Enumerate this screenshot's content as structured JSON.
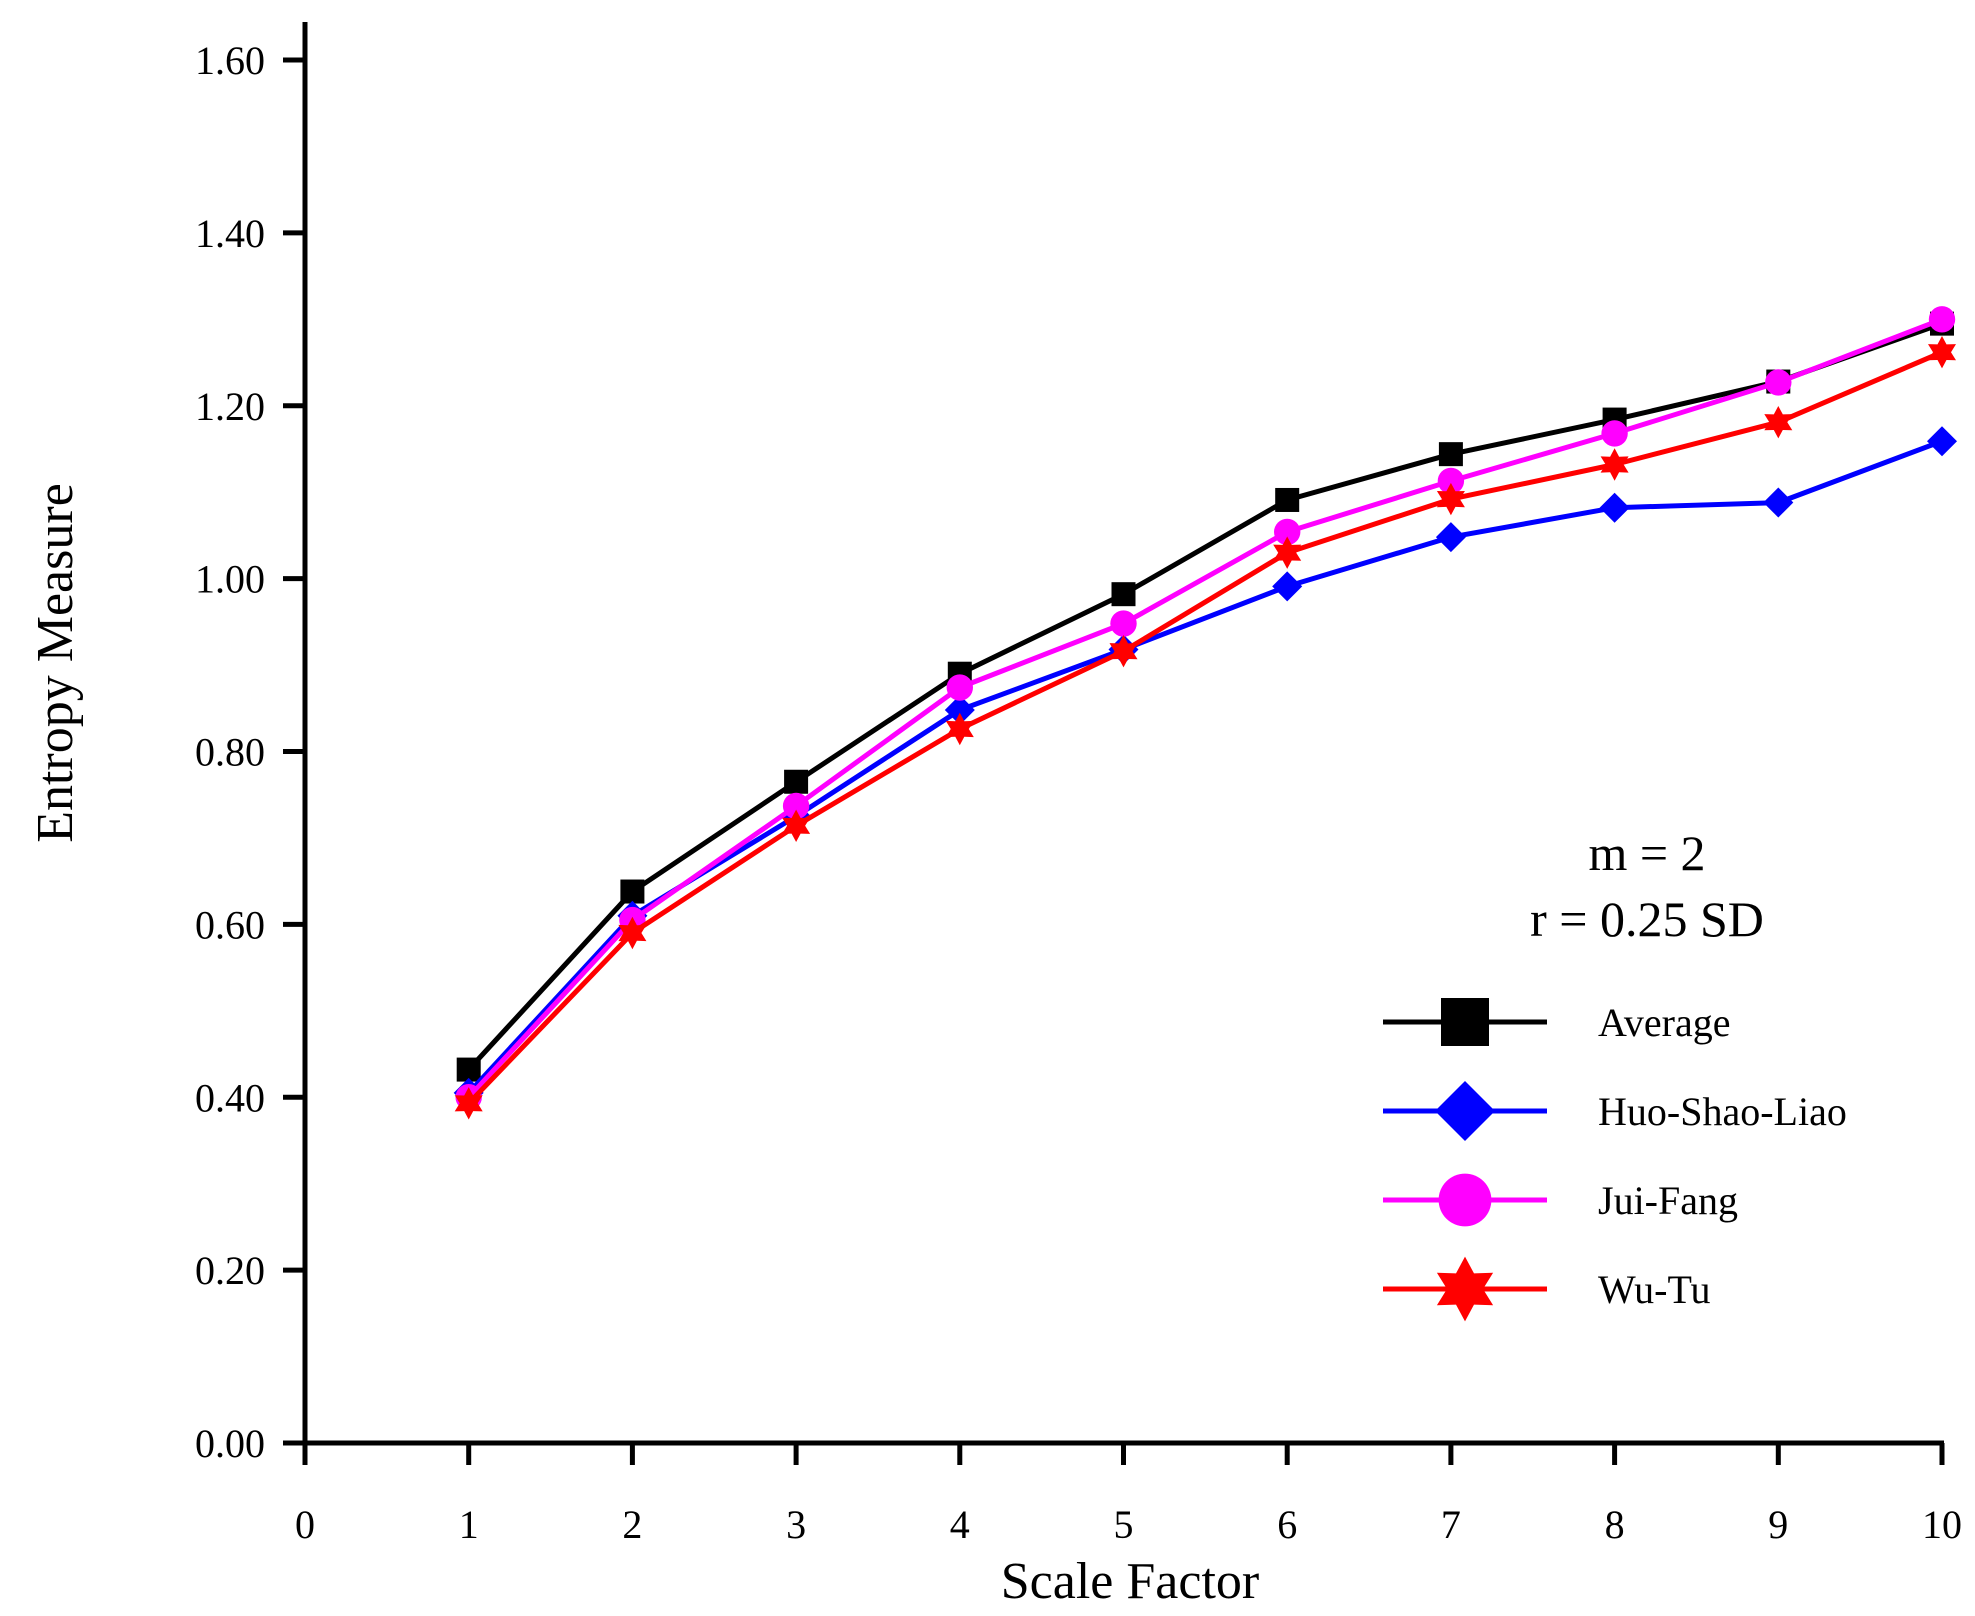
{
  "chart_data": {
    "type": "line",
    "title": "",
    "xlabel": "Scale Factor",
    "ylabel": "Entropy Measure",
    "xlim": [
      0,
      10
    ],
    "ylim": [
      0,
      1.6
    ],
    "x_ticks": [
      "0",
      "1",
      "2",
      "3",
      "4",
      "5",
      "6",
      "7",
      "8",
      "9",
      "10"
    ],
    "y_ticks": [
      "0.00",
      "0.20",
      "0.40",
      "0.60",
      "0.80",
      "1.00",
      "1.20",
      "1.40",
      "1.60"
    ],
    "grid": false,
    "legend_position": "lower-right",
    "annotations": [
      "m = 2",
      "r = 0.25 SD"
    ],
    "x": [
      1,
      2,
      3,
      4,
      5,
      6,
      7,
      8,
      9,
      10
    ],
    "series": [
      {
        "name": "Average",
        "color": "#000000",
        "marker": "square",
        "values": [
          0.432,
          0.638,
          0.765,
          0.89,
          0.982,
          1.091,
          1.144,
          1.184,
          1.228,
          1.295
        ]
      },
      {
        "name": "Huo-Shao-Liao",
        "color": "#0000ff",
        "marker": "diamond",
        "values": [
          0.405,
          0.61,
          0.725,
          0.848,
          0.918,
          0.991,
          1.048,
          1.082,
          1.088,
          1.159
        ]
      },
      {
        "name": "Jui-Fang",
        "color": "#ff00ff",
        "marker": "circle",
        "values": [
          0.4,
          0.605,
          0.737,
          0.874,
          0.948,
          1.054,
          1.113,
          1.168,
          1.227,
          1.3
        ]
      },
      {
        "name": "Wu-Tu",
        "color": "#ff0000",
        "marker": "star",
        "values": [
          0.393,
          0.59,
          0.714,
          0.826,
          0.916,
          1.03,
          1.092,
          1.132,
          1.181,
          1.262
        ]
      }
    ]
  }
}
